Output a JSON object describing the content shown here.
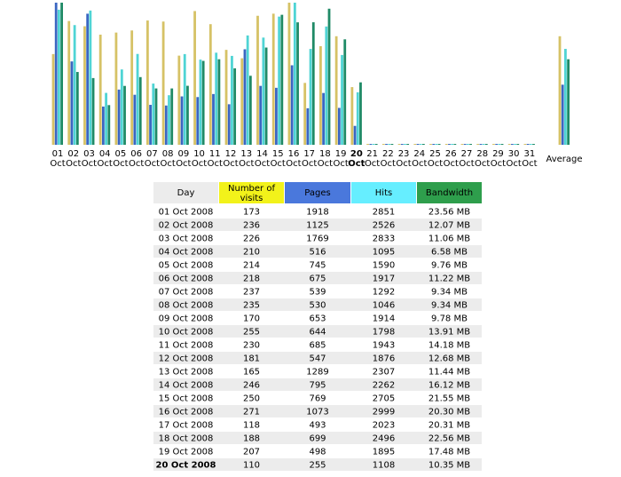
{
  "chart_data": {
    "type": "bar",
    "categories": [
      "01",
      "02",
      "03",
      "04",
      "05",
      "06",
      "07",
      "08",
      "09",
      "10",
      "11",
      "12",
      "13",
      "14",
      "15",
      "16",
      "17",
      "18",
      "19",
      "20",
      "21",
      "22",
      "23",
      "24",
      "25",
      "26",
      "27",
      "28",
      "29",
      "30",
      "31"
    ],
    "month": "Oct",
    "today_index": 19,
    "series": [
      {
        "name": "Number of visits",
        "color": "#d6c266",
        "header_color": "#f2f21a",
        "values": [
          173,
          236,
          226,
          210,
          214,
          218,
          237,
          235,
          170,
          255,
          230,
          181,
          165,
          246,
          250,
          271,
          118,
          188,
          207,
          110,
          0,
          0,
          0,
          0,
          0,
          0,
          0,
          0,
          0,
          0,
          0
        ]
      },
      {
        "name": "Pages",
        "color": "#3a66c2",
        "header_color": "#4a78dc",
        "values": [
          1918,
          1125,
          1769,
          516,
          745,
          675,
          539,
          530,
          653,
          644,
          685,
          547,
          1289,
          795,
          769,
          1073,
          493,
          699,
          498,
          255,
          0,
          0,
          0,
          0,
          0,
          0,
          0,
          0,
          0,
          0,
          0
        ]
      },
      {
        "name": "Hits",
        "color": "#4fd4d4",
        "header_color": "#66eeff",
        "values": [
          2851,
          2526,
          2833,
          1095,
          1590,
          1917,
          1292,
          1046,
          1914,
          1798,
          1943,
          1876,
          2307,
          2262,
          2705,
          2999,
          2023,
          2496,
          1895,
          1108,
          0,
          0,
          0,
          0,
          0,
          0,
          0,
          0,
          0,
          0,
          0
        ]
      },
      {
        "name": "Bandwidth",
        "color": "#1f8a66",
        "header_color": "#2e9e4c",
        "values": [
          23.56,
          12.07,
          11.06,
          6.58,
          9.76,
          11.22,
          9.34,
          9.34,
          9.78,
          13.91,
          14.18,
          12.68,
          11.44,
          16.12,
          21.55,
          20.3,
          20.31,
          22.56,
          17.48,
          10.35,
          0,
          0,
          0,
          0,
          0,
          0,
          0,
          0,
          0,
          0,
          0
        ],
        "value_labels": [
          "23.56 MB",
          "12.07 MB",
          "11.06 MB",
          "6.58 MB",
          "9.76 MB",
          "11.22 MB",
          "9.34 MB",
          "9.34 MB",
          "9.78 MB",
          "13.91 MB",
          "14.18 MB",
          "12.68 MB",
          "11.44 MB",
          "16.12 MB",
          "21.55 MB",
          "20.30 MB",
          "20.31 MB",
          "22.56 MB",
          "17.48 MB",
          "10.35 MB",
          null,
          null,
          null,
          null,
          null,
          null,
          null,
          null,
          null,
          null,
          null
        ]
      }
    ],
    "average": {
      "label": "Average",
      "values": [
        207,
        811,
        2024,
        14.18
      ]
    }
  },
  "table": {
    "day_header": "Day",
    "days": [
      "01 Oct 2008",
      "02 Oct 2008",
      "03 Oct 2008",
      "04 Oct 2008",
      "05 Oct 2008",
      "06 Oct 2008",
      "07 Oct 2008",
      "08 Oct 2008",
      "09 Oct 2008",
      "10 Oct 2008",
      "11 Oct 2008",
      "12 Oct 2008",
      "13 Oct 2008",
      "14 Oct 2008",
      "15 Oct 2008",
      "16 Oct 2008",
      "17 Oct 2008",
      "18 Oct 2008",
      "19 Oct 2008",
      "20 Oct 2008"
    ]
  }
}
